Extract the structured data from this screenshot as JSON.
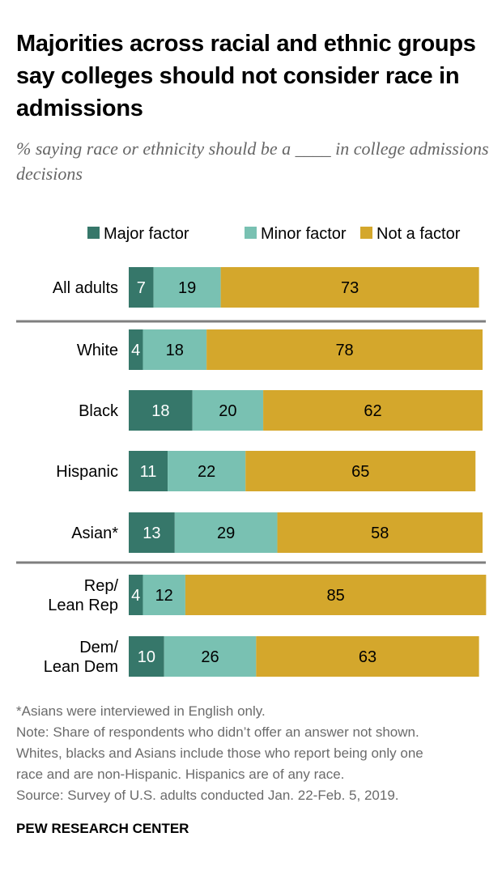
{
  "title": "Majorities across racial and ethnic groups say colleges should not consider race in admissions",
  "subtitle": "% saying race or ethnicity should be a ____ in college admissions decisions",
  "chart_data": {
    "type": "bar",
    "orientation": "horizontal-stacked",
    "categories": [
      "All adults",
      "White",
      "Black",
      "Hispanic",
      "Asian*",
      "Rep/ Lean Rep",
      "Dem/ Lean Dem"
    ],
    "category_lines": [
      [
        "All adults"
      ],
      [
        "White"
      ],
      [
        "Black"
      ],
      [
        "Hispanic"
      ],
      [
        "Asian*"
      ],
      [
        "Rep/",
        "Lean Rep"
      ],
      [
        "Dem/",
        "Lean Dem"
      ]
    ],
    "groups_separated_after": [
      0,
      4
    ],
    "series": [
      {
        "name": "Major factor",
        "color": "#36776a",
        "label_color": "#ffffff",
        "values": [
          7,
          4,
          18,
          11,
          13,
          4,
          10
        ]
      },
      {
        "name": "Minor factor",
        "color": "#79c1b2",
        "label_color": "#000000",
        "values": [
          19,
          18,
          20,
          22,
          29,
          12,
          26
        ]
      },
      {
        "name": "Not a factor",
        "color": "#d4a72c",
        "label_color": "#000000",
        "values": [
          73,
          78,
          62,
          65,
          58,
          85,
          63
        ]
      }
    ],
    "xlim": [
      0,
      100
    ],
    "legend_position": "top-right",
    "grid": false
  },
  "notes": [
    "*Asians were interviewed in English only.",
    "Note: Share of respondents who didn’t offer an answer not shown.",
    "Whites, blacks and Asians include those who report being only one",
    "race and are non-Hispanic. Hispanics are of any race.",
    "Source: Survey of U.S. adults conducted Jan. 22-Feb. 5, 2019."
  ],
  "brand": "PEW RESEARCH CENTER"
}
